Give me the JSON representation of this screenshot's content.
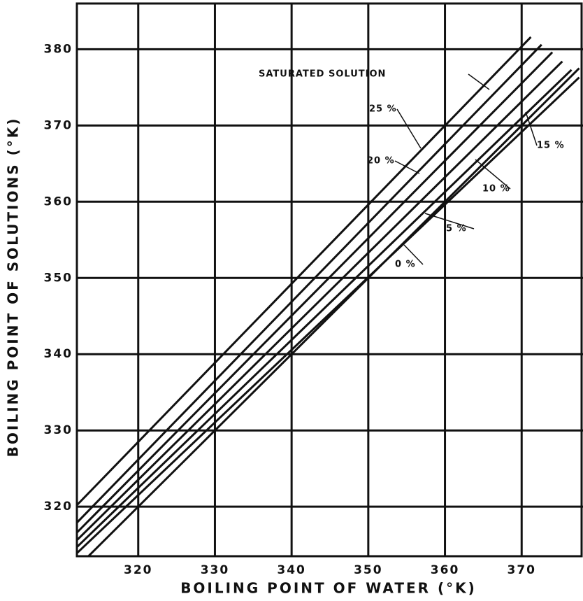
{
  "chart_data": {
    "type": "line",
    "x_label": "BOILING POINT OF WATER (°K)",
    "y_label": "BOILING POINT OF SOLUTIONS (°K)",
    "xlim": [
      312,
      378
    ],
    "ylim": [
      313.5,
      386
    ],
    "xticks": [
      320,
      330,
      340,
      350,
      360,
      370
    ],
    "yticks": [
      320,
      330,
      340,
      350,
      360,
      370,
      380
    ],
    "grid": true,
    "color": "#111111",
    "series": [
      {
        "name": "SATURATED SOLUTION",
        "x": [
          312,
          371.2
        ],
        "values": [
          320.2,
          381.6
        ]
      },
      {
        "name": "25 %",
        "x": [
          312,
          372.6
        ],
        "values": [
          317.9,
          380.6
        ]
      },
      {
        "name": "20 %",
        "x": [
          312,
          374
        ],
        "values": [
          316.6,
          379.6
        ]
      },
      {
        "name": "15 %",
        "x": [
          312,
          375.3
        ],
        "values": [
          315.6,
          378.4
        ]
      },
      {
        "name": "10 %",
        "x": [
          312,
          376.5
        ],
        "values": [
          314.7,
          377.3
        ]
      },
      {
        "name": "5 %",
        "x": [
          312,
          377.5
        ],
        "values": [
          313.9,
          376.3
        ]
      },
      {
        "name": "0 %",
        "x": [
          313.5,
          377.5
        ],
        "values": [
          313.5,
          377.5
        ]
      }
    ]
  }
}
